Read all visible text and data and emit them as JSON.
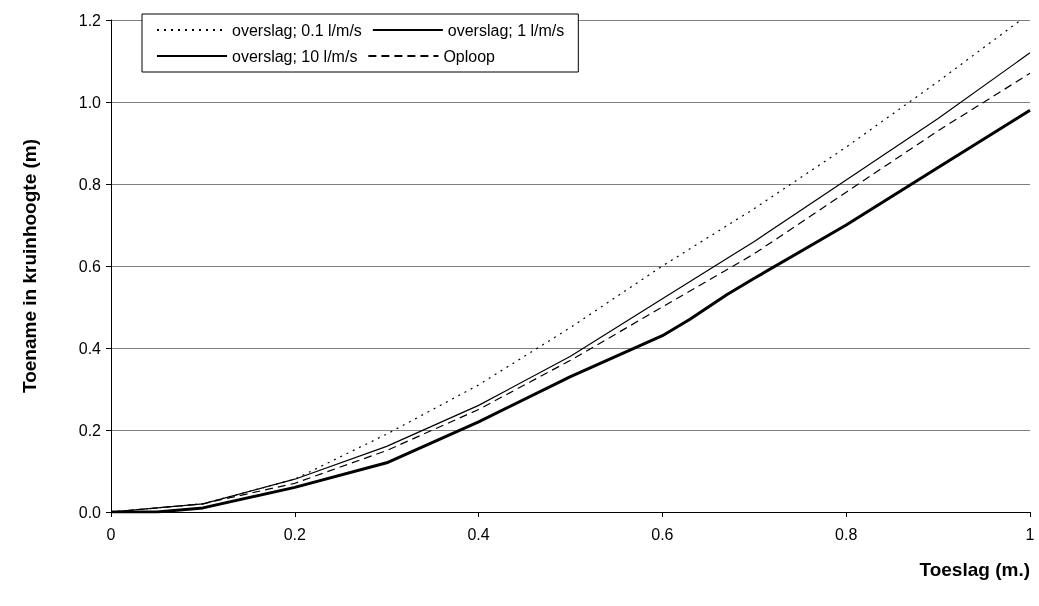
{
  "chart_data": {
    "type": "line",
    "xlabel": "Toeslag (m.)",
    "ylabel": "Toename in kruinhoogte (m)",
    "xlim": [
      0,
      1
    ],
    "xticks": [
      0,
      0.2,
      0.4,
      0.6,
      0.8,
      1
    ],
    "ylim": [
      0,
      1.2
    ],
    "yticks": [
      {
        "value": 0,
        "label": "0.0"
      },
      0.2,
      0.4,
      0.6,
      0.8,
      {
        "value": 1,
        "label": "1.0"
      },
      1.2
    ],
    "grid": "y",
    "legend": "top left",
    "marker": "none",
    "series": [
      {
        "name": "overslag; 0.1 l/m/s",
        "color": "#000000",
        "line_style": "dotted",
        "x": [
          0,
          0.1,
          0.2,
          0.3,
          0.4,
          0.5,
          0.6,
          0.7,
          0.8,
          0.9,
          0.99
        ],
        "values": [
          0,
          0.02,
          0.08,
          0.19,
          0.31,
          0.45,
          0.6,
          0.74,
          0.89,
          1.05,
          1.2
        ]
      },
      {
        "name": "overslag; 1 l/m/s",
        "color": "#000000",
        "line_style": "solid",
        "x": [
          0,
          0.1,
          0.2,
          0.3,
          0.4,
          0.5,
          0.6,
          0.7,
          0.8,
          0.9,
          1
        ],
        "values": [
          0,
          0.02,
          0.08,
          0.16,
          0.26,
          0.38,
          0.52,
          0.66,
          0.81,
          0.96,
          1.12
        ]
      },
      {
        "name": "overslag; 10 l/m/s",
        "color": "#000000",
        "line_style": "solid",
        "x": [
          0,
          0.05,
          0.1,
          0.2,
          0.3,
          0.4,
          0.5,
          0.6,
          0.63,
          0.67,
          0.7,
          0.8,
          0.9,
          1
        ],
        "values": [
          0,
          0,
          0.01,
          0.06,
          0.12,
          0.22,
          0.33,
          0.43,
          0.47,
          0.53,
          0.57,
          0.7,
          0.84,
          0.98
        ]
      },
      {
        "name": "Oploop",
        "color": "#000000",
        "line_style": "dashed",
        "x": [
          0,
          0.1,
          0.2,
          0.3,
          0.4,
          0.5,
          0.6,
          0.7,
          0.8,
          0.9,
          1
        ],
        "values": [
          0,
          0.02,
          0.07,
          0.15,
          0.25,
          0.37,
          0.5,
          0.63,
          0.78,
          0.93,
          1.07
        ]
      }
    ]
  }
}
